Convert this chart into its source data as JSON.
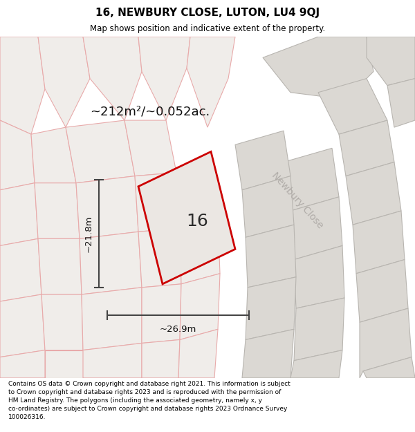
{
  "title": "16, NEWBURY CLOSE, LUTON, LU4 9QJ",
  "subtitle": "Map shows position and indicative extent of the property.",
  "area_label": "~212m²/~0.052ac.",
  "number_label": "16",
  "dim_width_label": "~26.9m",
  "dim_height_label": "~21.8m",
  "street_label": "Newbury Close",
  "footer": "Contains OS data © Crown copyright and database right 2021. This information is subject to Crown copyright and database rights 2023 and is reproduced with the permission of HM Land Registry. The polygons (including the associated geometry, namely x, y co-ordinates) are subject to Crown copyright and database rights 2023 Ordnance Survey 100026316.",
  "map_bg": "#f7f5f2",
  "plot_fill_gray": "#dbd8d3",
  "plot_fill_light": "#f0edea",
  "highlight_fill": "#ebe7e3",
  "red_line": "#cc0000",
  "pink_line": "#e8aaaa",
  "gray_line": "#b8b5b0",
  "dark_line": "#444444",
  "title_fontsize": 11,
  "subtitle_fontsize": 8.5,
  "footer_fontsize": 6.5
}
